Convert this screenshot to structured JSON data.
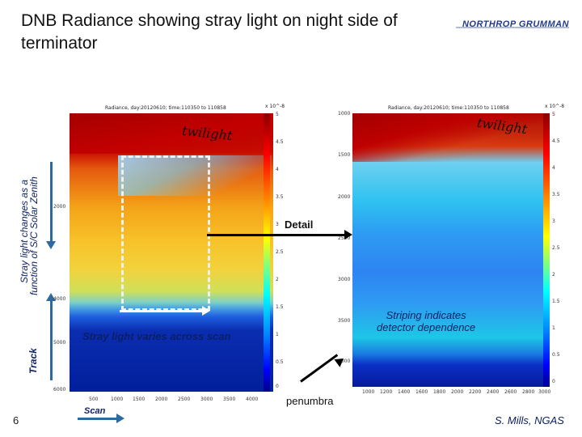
{
  "slide": {
    "title": "DNB Radiance showing stray light on night side of terminator",
    "logo_text": "NORTHROP GRUMMAN",
    "slide_number": "6",
    "credit": "S. Mills, NGAS"
  },
  "axes_labels": {
    "side_line1": "Stray light changes as a",
    "side_line2": "function of S/C Solar Zenith",
    "track": "Track",
    "scan": "Scan"
  },
  "annotations": {
    "twilight_left": "twilight",
    "twilight_right": "twilight",
    "detail": "Detail",
    "stray_light": "Stray light varies across scan",
    "striping_line1": "Striping indicates",
    "striping_line2": "detector dependence",
    "penumbra": "penumbra"
  },
  "left_panel": {
    "title": "Radiance, day:20120610; time:110350 to 110858",
    "exponent": "x 10^-8",
    "y_ticks": [
      "2000",
      "4000",
      "5000",
      "6000"
    ],
    "x_ticks": [
      "500",
      "1000",
      "1500",
      "2000",
      "2500",
      "3000",
      "3500",
      "4000"
    ],
    "colorbar_ticks": [
      "5",
      "4.5",
      "4",
      "3.5",
      "3",
      "2.5",
      "2",
      "1.5",
      "1",
      "0.5",
      "0"
    ]
  },
  "right_panel": {
    "title": "Radiance, day:20120610; time:110350 to 110858",
    "exponent": "x 10^-8",
    "y_ticks": [
      "1000",
      "1500",
      "2000",
      "2500",
      "3000",
      "3500",
      "4000"
    ],
    "x_ticks": [
      "1000",
      "1200",
      "1400",
      "1600",
      "1800",
      "2000",
      "2200",
      "2400",
      "2600",
      "2800",
      "3000"
    ],
    "colorbar_ticks": [
      "5",
      "4.5",
      "4",
      "3.5",
      "3",
      "2.5",
      "2",
      "1.5",
      "1",
      "0.5",
      "0"
    ]
  }
}
